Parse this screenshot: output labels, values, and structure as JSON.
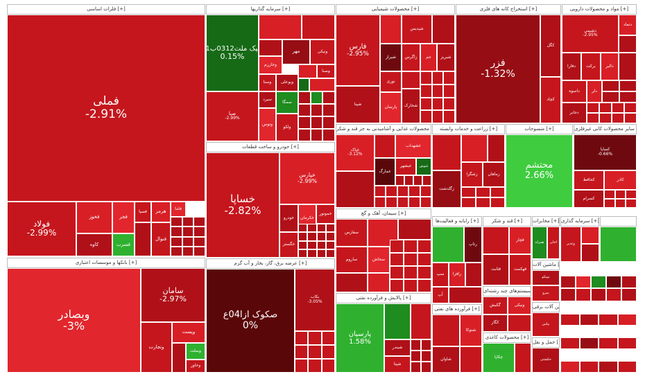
{
  "sections": [
    {
      "id": "foolad",
      "title": "فلزات اساسی [+]",
      "tiles": [
        {
          "name": "فملی",
          "pct": "-2.91%"
        },
        {
          "name": "فولاد",
          "pct": "-2.99%"
        },
        {
          "name": "فخوز"
        },
        {
          "name": "کاوه"
        },
        {
          "name": "فجر"
        },
        {
          "name": "فسرب"
        },
        {
          "name": "هرمز"
        },
        {
          "name": "فنوال"
        },
        {
          "name": "فسپا"
        },
        {
          "name": "فاما"
        }
      ]
    },
    {
      "id": "khodro",
      "title": "خودرو و ساخت قطعات [+]",
      "tiles": [
        {
          "name": "خساپا",
          "pct": "-2.82%"
        },
        {
          "name": "خپارس",
          "pct": "-2.99%"
        },
        {
          "name": "خودرو"
        },
        {
          "name": "خگستر"
        },
        {
          "name": "خکرمان"
        },
        {
          "name": "خموتور"
        }
      ]
    },
    {
      "id": "bank",
      "title": "بانکها و موسسات اعتباری [+]",
      "tiles": [
        {
          "name": "وبصادر",
          "pct": "-3%"
        },
        {
          "name": "سامان",
          "pct": "-2.97%"
        },
        {
          "name": "وبملت"
        },
        {
          "name": "وپست"
        },
        {
          "name": "وتجارت"
        },
        {
          "name": "وخاور"
        }
      ]
    },
    {
      "id": "bourse",
      "title": "عرضه برق، گاز، بخار و آب گرم [+]",
      "tiles": [
        {
          "name": "صکوک ازا04ع",
          "pct": "0%"
        },
        {
          "name": "بکاب",
          "pct": "-3.05%"
        }
      ]
    },
    {
      "id": "financial",
      "title": "سرمایه گذاریها [+]",
      "tiles": [
        {
          "name": "سیک ملت0312ب01",
          "pct": "0.15%"
        },
        {
          "name": "مهر"
        },
        {
          "name": "ونیکی"
        },
        {
          "name": "وخارزم"
        },
        {
          "name": "وسنا"
        },
        {
          "name": "وبوعلی"
        },
        {
          "name": "وصنا"
        },
        {
          "name": "سمگا"
        },
        {
          "name": "سپرد"
        },
        {
          "name": "وتوس"
        },
        {
          "name": "ولکو"
        },
        {
          "name": "صبا",
          "pct": "-2.99%"
        }
      ]
    },
    {
      "id": "chemical",
      "title": "محصولات شیمیایی [+]",
      "tiles": [
        {
          "name": "فارس",
          "pct": "-2.95%"
        },
        {
          "name": "شپدیس"
        },
        {
          "name": "شیراز"
        },
        {
          "name": "زاگرس"
        },
        {
          "name": "نوری"
        },
        {
          "name": "پارسان"
        },
        {
          "name": "جم"
        },
        {
          "name": "شخارک"
        },
        {
          "name": "شبریز"
        },
        {
          "name": "شپنا"
        }
      ]
    },
    {
      "id": "ore",
      "title": "استخراج کانه های فلزی [+]",
      "tiles": [
        {
          "name": "فزر",
          "pct": "-1.32%"
        },
        {
          "name": "کگل"
        },
        {
          "name": "کچاد"
        }
      ]
    },
    {
      "id": "pharma",
      "title": "مواد و محصولات دارویی [+]",
      "tiles": [
        {
          "name": "دشیمی",
          "pct": "-2.95%"
        },
        {
          "name": "دتماد"
        },
        {
          "name": "دفارا"
        },
        {
          "name": "برکت"
        },
        {
          "name": "دالبر"
        },
        {
          "name": "داسوه"
        },
        {
          "name": "دجابر"
        },
        {
          "name": "دلر"
        }
      ]
    },
    {
      "id": "food",
      "title": "محصولات غذایی و آشامیدنی به جز قند و شکر [+]",
      "tiles": [
        {
          "name": "غپاک",
          "pct": "-3.12%"
        },
        {
          "name": "غشهداب"
        },
        {
          "name": "غمارگ"
        },
        {
          "name": "غبشهر"
        },
        {
          "name": "غنوش"
        }
      ]
    },
    {
      "id": "commerce",
      "title": "زراعت و خدمات وابسته [+]",
      "tiles": [
        {
          "name": "زگلدشت"
        },
        {
          "name": "زشگزا"
        },
        {
          "name": "زماهان"
        }
      ]
    },
    {
      "id": "textile",
      "title": "منسوجات [+]",
      "tiles": [
        {
          "name": "محتشم",
          "pct": "2.66%"
        }
      ]
    },
    {
      "id": "tile",
      "title": "سایر محصولات کانی غیرفلزی [+]",
      "tiles": [
        {
          "name": "کساپا",
          "pct": "-0.66%"
        },
        {
          "name": "کاذر"
        },
        {
          "name": "کحافظ"
        },
        {
          "name": "کسرام"
        }
      ]
    },
    {
      "id": "cement",
      "title": "سیمان، آهک و گچ [+]",
      "tiles": [
        {
          "name": "سفارس"
        },
        {
          "name": "ساروم"
        },
        {
          "name": "سخاش"
        },
        {
          "name": "سصفها"
        }
      ]
    },
    {
      "id": "multi",
      "title": "رایانه و فعالیت‌ها [+]",
      "tiles": [
        {
          "name": "رتاپ"
        },
        {
          "name": "رافزا"
        },
        {
          "name": "سپ"
        },
        {
          "name": "آپ"
        }
      ]
    },
    {
      "id": "sugar",
      "title": "قند و شکر [+]",
      "tiles": [
        {
          "name": "قثابت"
        },
        {
          "name": "قچار"
        },
        {
          "name": "قهکمت"
        }
      ]
    },
    {
      "id": "trade",
      "title": "مخابرات [+]",
      "tiles": [
        {
          "name": "اخابر"
        },
        {
          "name": "همراه"
        }
      ]
    },
    {
      "id": "machinery",
      "title": "ماشین آلات [+]",
      "tiles": [
        {
          "name": "تیپیکو"
        },
        {
          "name": "بنیرو"
        }
      ]
    },
    {
      "id": "electric",
      "title": "ماشین آلات برقی [+]",
      "tiles": [
        {
          "name": "بپاس"
        }
      ]
    },
    {
      "id": "wood",
      "title": "حمل و نقل [+]",
      "tiles": [
        {
          "name": "حکشتی"
        }
      ]
    },
    {
      "id": "water",
      "title": "سرمایه گذاری [+]",
      "tiles": [
        {
          "name": "وغدیر"
        }
      ]
    },
    {
      "id": "tech",
      "title": "سیستم‌های چند رشته‌ای [+]",
      "tiles": [
        {
          "name": "گکیش"
        },
        {
          "name": "کگاز"
        },
        {
          "name": "ونیکی"
        }
      ]
    },
    {
      "id": "oil",
      "title": "پالایش و فرآورده نفتی [+]",
      "tiles": [
        {
          "name": "پارسیان",
          "pct": "1.58%"
        },
        {
          "name": "شبندر"
        },
        {
          "name": "شپنا"
        }
      ]
    },
    {
      "id": "misc",
      "title": "فرآورده های نفتی [+]",
      "tiles": [
        {
          "name": "شاوان"
        },
        {
          "name": "شتوکا"
        }
      ]
    },
    {
      "id": "insur",
      "title": "محصولات کاغذی [+]",
      "tiles": [
        {
          "name": "چکاپا"
        }
      ]
    }
  ]
}
